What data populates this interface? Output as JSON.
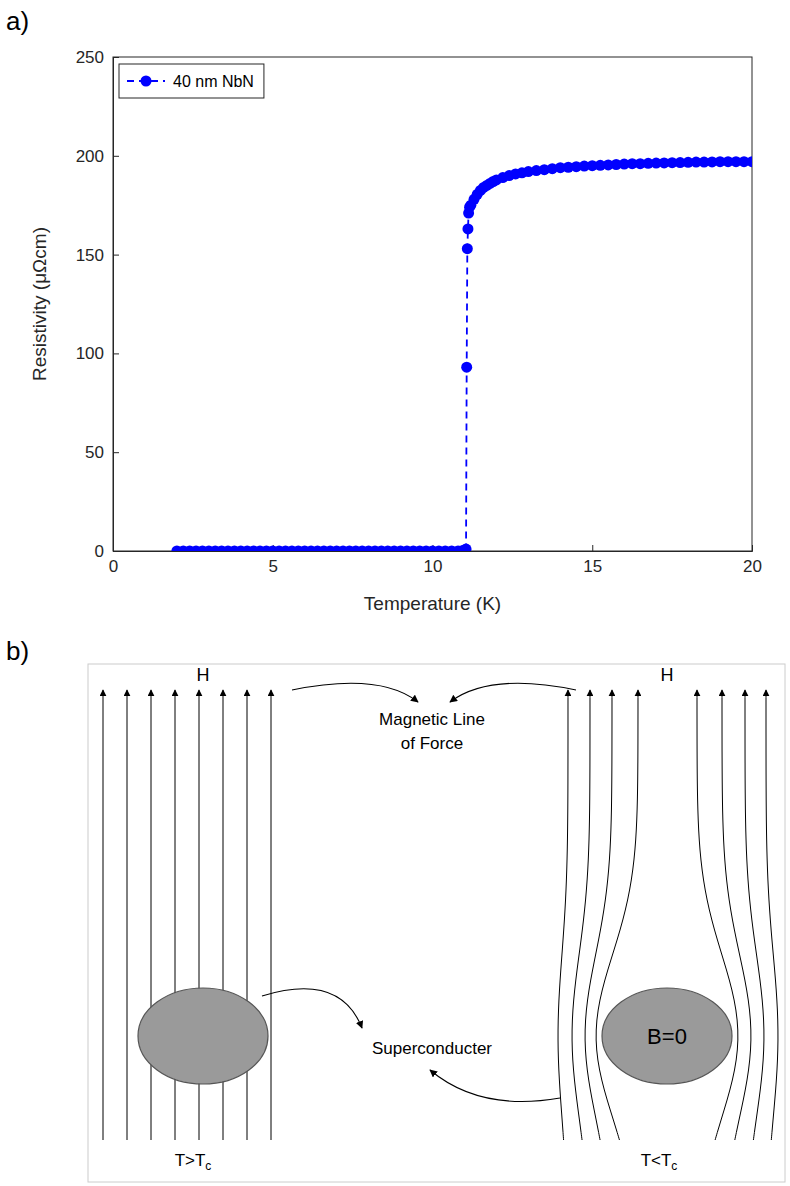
{
  "chart_data": {
    "type": "line",
    "panel_label": "a)",
    "x_label": "Temperature (K)",
    "y_label": "Resistivity  (μΩcm)",
    "x": [
      2,
      2.2,
      2.4,
      2.6,
      2.8,
      3,
      3.2,
      3.4,
      3.6,
      3.8,
      4,
      4.2,
      4.4,
      4.6,
      4.8,
      5,
      5.2,
      5.4,
      5.6,
      5.8,
      6,
      6.2,
      6.4,
      6.6,
      6.8,
      7,
      7.2,
      7.4,
      7.6,
      7.8,
      8,
      8.2,
      8.4,
      8.6,
      8.8,
      9,
      9.2,
      9.4,
      9.6,
      9.8,
      10,
      10.2,
      10.4,
      10.6,
      10.8,
      10.9,
      11,
      11.05,
      11.07,
      11.09,
      11.11,
      11.13,
      11.16,
      11.2,
      11.3,
      11.4,
      11.5,
      11.6,
      11.7,
      11.8,
      11.9,
      12,
      12.2,
      12.4,
      12.6,
      12.8,
      13,
      13.25,
      13.5,
      13.75,
      14,
      14.25,
      14.5,
      14.75,
      15,
      15.25,
      15.5,
      15.75,
      16,
      16.25,
      16.5,
      16.75,
      17,
      17.25,
      17.5,
      17.75,
      18,
      18.25,
      18.5,
      18.75,
      19,
      19.25,
      19.5,
      19.75,
      20
    ],
    "series": [
      {
        "name": "40 nm NbN",
        "color": "#0000ff",
        "marker": "circle",
        "line_style": "dashed",
        "values": [
          0,
          0,
          0,
          0,
          0,
          0,
          0,
          0,
          0,
          0,
          0,
          0,
          0,
          0,
          0,
          0,
          0,
          0,
          0,
          0,
          0,
          0,
          0,
          0,
          0,
          0,
          0,
          0,
          0,
          0,
          0,
          0,
          0,
          0,
          0,
          0,
          0,
          0,
          0,
          0,
          0,
          0,
          0,
          0,
          0,
          0,
          0.5,
          1,
          93,
          153,
          163,
          171,
          174,
          175,
          178,
          180.5,
          182.5,
          184,
          185,
          186,
          187,
          187.8,
          189,
          190,
          190.8,
          191.4,
          192,
          192.5,
          193,
          193.5,
          194,
          194.2,
          194.5,
          194.8,
          195,
          195.2,
          195.4,
          195.6,
          195.8,
          196,
          196,
          196.2,
          196.3,
          196.4,
          196.5,
          196.6,
          196.7,
          196.8,
          196.8,
          196.9,
          197,
          197,
          197,
          197,
          197
        ]
      }
    ],
    "xlim": [
      0,
      20
    ],
    "xticks": [
      0,
      5,
      10,
      15,
      20
    ],
    "ylim": [
      0,
      250
    ],
    "yticks": [
      0,
      50,
      100,
      150,
      200,
      250
    ],
    "grid": false,
    "legend": "upper left"
  },
  "diagram": {
    "panel_label": "b)",
    "field_labels": [
      "H",
      "H"
    ],
    "line_label": [
      "Magnetic Line",
      "of Force"
    ],
    "object_label": "Superconducter",
    "inside_label": "B=0",
    "conditions": [
      {
        "text": "T>T",
        "subscript": "c"
      },
      {
        "text": "T<T",
        "subscript": "c"
      }
    ]
  }
}
